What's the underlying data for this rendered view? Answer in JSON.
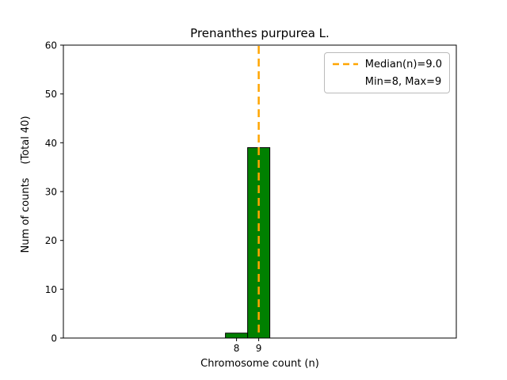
{
  "chart_data": {
    "type": "bar",
    "title": "Prenanthes purpurea L.",
    "xlabel": "Chromosome count (n)",
    "ylabel": "Num of counts    (Total 40)",
    "categories": [
      8,
      9
    ],
    "values": [
      1,
      39
    ],
    "min": 8,
    "max": 9,
    "bar_color": "#008000",
    "bar_edge_color": "#000000",
    "bar_width": 1,
    "xlim": [
      0.2,
      17.9
    ],
    "ylim": [
      0,
      60
    ],
    "xticks": [
      8,
      9
    ],
    "yticks": [
      0,
      10,
      20,
      30,
      40,
      50,
      60
    ],
    "grid": false,
    "median_line": {
      "x": 9.0,
      "color": "#FFA500",
      "style": "dashed"
    },
    "legend": {
      "position": "top-right",
      "entries": [
        {
          "label": "Median(n)=9.0",
          "color": "#FFA500",
          "marker": "dashed-line"
        },
        {
          "label": "Min=8, Max=9",
          "marker": "none"
        }
      ]
    }
  }
}
